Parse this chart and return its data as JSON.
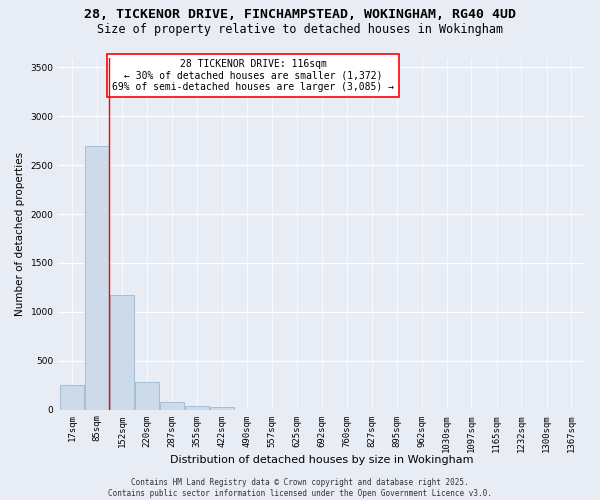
{
  "title1": "28, TICKENOR DRIVE, FINCHAMPSTEAD, WOKINGHAM, RG40 4UD",
  "title2": "Size of property relative to detached houses in Wokingham",
  "xlabel": "Distribution of detached houses by size in Wokingham",
  "ylabel": "Number of detached properties",
  "bar_labels": [
    "17sqm",
    "85sqm",
    "152sqm",
    "220sqm",
    "287sqm",
    "355sqm",
    "422sqm",
    "490sqm",
    "557sqm",
    "625sqm",
    "692sqm",
    "760sqm",
    "827sqm",
    "895sqm",
    "962sqm",
    "1030sqm",
    "1097sqm",
    "1165sqm",
    "1232sqm",
    "1300sqm",
    "1367sqm"
  ],
  "bar_values": [
    250,
    2700,
    1170,
    280,
    80,
    40,
    30,
    0,
    0,
    0,
    0,
    0,
    0,
    0,
    0,
    0,
    0,
    0,
    0,
    0,
    0
  ],
  "bar_color": "#cddaea",
  "bar_edge_color": "#9ab8d4",
  "red_line_x": 116,
  "bar_step": 67.5,
  "ylim": [
    0,
    3600
  ],
  "yticks": [
    0,
    500,
    1000,
    1500,
    2000,
    2500,
    3000,
    3500
  ],
  "annotation_text": "28 TICKENOR DRIVE: 116sqm\n← 30% of detached houses are smaller (1,372)\n69% of semi-detached houses are larger (3,085) →",
  "bg_color": "#e8edf5",
  "grid_color": "#ffffff",
  "footer_line1": "Contains HM Land Registry data © Crown copyright and database right 2025.",
  "footer_line2": "Contains public sector information licensed under the Open Government Licence v3.0.",
  "title1_fontsize": 9.5,
  "title2_fontsize": 8.5,
  "xlabel_fontsize": 8,
  "ylabel_fontsize": 7.5,
  "tick_fontsize": 6.5,
  "annotation_fontsize": 7,
  "footer_fontsize": 5.5
}
